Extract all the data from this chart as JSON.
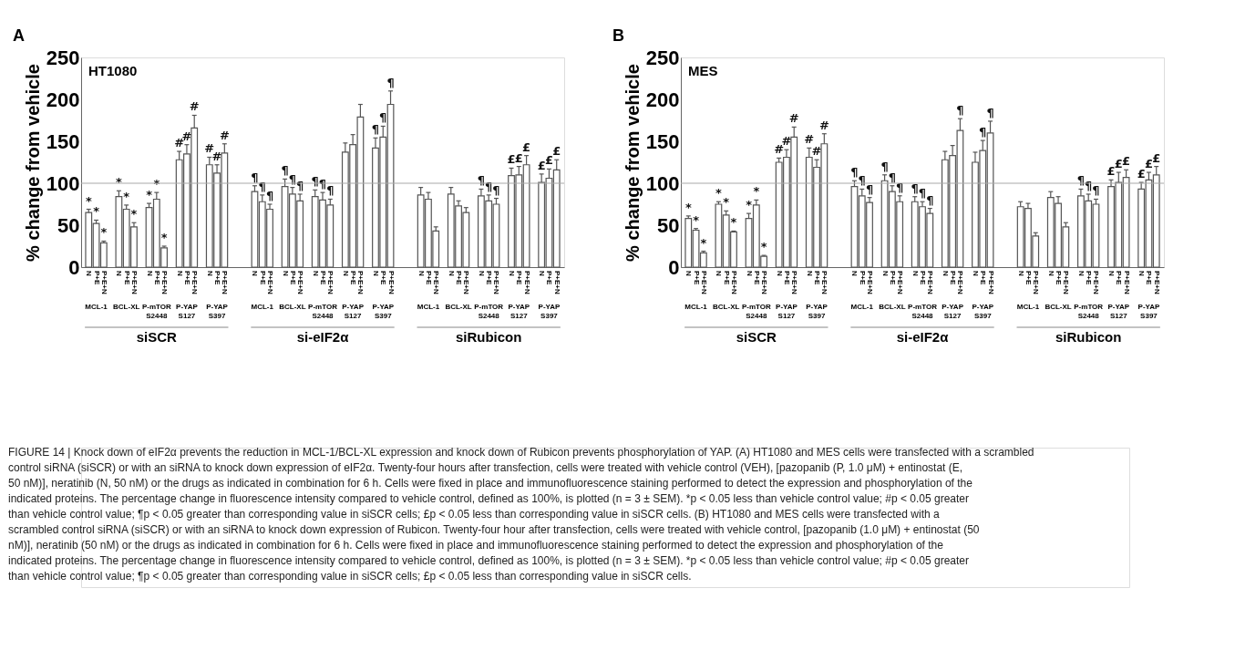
{
  "chart_data": [
    {
      "type": "bar",
      "ylabel": "% change from vehicle",
      "categories": [
        "N",
        "P+E",
        "P+E+N",
        null,
        "N",
        "P+E",
        "P+E+N",
        null,
        "N",
        "P+E",
        "P+E+N",
        null,
        "N",
        "P+E",
        "P+E+N",
        null,
        "N",
        "P+E",
        "P+E+N",
        null,
        null,
        null,
        "N",
        "P+E",
        "P+E+N",
        null,
        "N",
        "P+E",
        "P+E+N",
        null,
        "N",
        "P+E",
        "P+E+N",
        null,
        "N",
        "P+E",
        "P+E+N",
        null,
        "N",
        "P+E",
        "P+E+N",
        null,
        null,
        null,
        "N",
        "P+E",
        "P+E+N",
        null,
        "N",
        "P+E",
        "P+E+N",
        null,
        "N",
        "P+E",
        "P+E+N",
        null,
        "N",
        "P+E",
        "P+E+N",
        null,
        "N",
        "P+E",
        "P+E+N"
      ],
      "series": [
        {
          "color": "#ffffff",
          "values": [
            65,
            52,
            29,
            null,
            84,
            69,
            48,
            null,
            71,
            81,
            23,
            null,
            128,
            135,
            166,
            null,
            122,
            112,
            136,
            null,
            null,
            null,
            90,
            78,
            69,
            null,
            96,
            87,
            79,
            null,
            84,
            80,
            74,
            null,
            137,
            146,
            179,
            null,
            142,
            155,
            194,
            null,
            null,
            null,
            86,
            81,
            43,
            null,
            87,
            73,
            65,
            null,
            85,
            79,
            75,
            null,
            109,
            110,
            122,
            null,
            101,
            106,
            116
          ],
          "errors": [
            [
              65,
              69
            ],
            [
              52,
              56
            ],
            [
              29,
              31
            ],
            null,
            [
              84,
              91
            ],
            [
              69,
              74
            ],
            [
              48,
              53
            ],
            null,
            [
              71,
              76
            ],
            [
              81,
              89
            ],
            [
              23,
              25
            ],
            null,
            [
              128,
              138
            ],
            [
              135,
              146
            ],
            [
              166,
              181
            ],
            null,
            [
              122,
              131
            ],
            [
              112,
              122
            ],
            [
              136,
              147
            ],
            null,
            null,
            null,
            [
              90,
              97
            ],
            [
              78,
              86
            ],
            [
              69,
              75
            ],
            null,
            [
              96,
              105
            ],
            [
              87,
              95
            ],
            [
              79,
              87
            ],
            null,
            [
              84,
              92
            ],
            [
              80,
              89
            ],
            [
              74,
              81
            ],
            null,
            [
              137,
              148
            ],
            [
              146,
              158
            ],
            [
              179,
              194
            ],
            null,
            [
              142,
              154
            ],
            [
              155,
              168
            ],
            [
              194,
              210
            ],
            null,
            null,
            null,
            [
              86,
              95
            ],
            [
              81,
              89
            ],
            [
              43,
              48
            ],
            null,
            [
              87,
              95
            ],
            [
              73,
              79
            ],
            [
              65,
              71
            ],
            null,
            [
              85,
              93
            ],
            [
              79,
              86
            ],
            [
              75,
              82
            ],
            null,
            [
              109,
              118
            ],
            [
              110,
              120
            ],
            [
              122,
              133
            ],
            null,
            [
              101,
              111
            ],
            [
              106,
              117
            ],
            [
              116,
              128
            ]
          ],
          "value_labels": [
            "*",
            "*",
            "*",
            null,
            "*",
            "*",
            "*",
            null,
            "*",
            "*",
            "*",
            null,
            "#",
            "#",
            "#",
            null,
            "#",
            "#",
            "#",
            null,
            null,
            null,
            "¶",
            "¶",
            "¶",
            null,
            "¶",
            "¶",
            "¶",
            null,
            "¶",
            "¶",
            "¶",
            null,
            null,
            null,
            null,
            null,
            "¶",
            "¶",
            "¶",
            null,
            null,
            null,
            null,
            null,
            null,
            null,
            null,
            null,
            null,
            null,
            "¶",
            "¶",
            "¶",
            null,
            "£",
            "£",
            "£",
            null,
            "£",
            "£",
            "£"
          ]
        }
      ],
      "ylim": [
        0,
        250
      ],
      "yticks": [
        0,
        50,
        100,
        150,
        200,
        250
      ],
      "grid": false,
      "ref_lines": [
        {
          "axis": "y",
          "value": 100,
          "color": "#aaaaaa"
        }
      ],
      "annotations": [
        "A",
        "HT1080",
        "MCL-1",
        "BCL-XL",
        "P-mTOR S2448",
        "P-YAP S127",
        "P-YAP S397",
        "MCL-1",
        "BCL-XL",
        "P-mTOR S2448",
        "P-YAP S127",
        "P-YAP S397",
        "MCL-1",
        "BCL-XL",
        "P-mTOR S2448",
        "P-YAP S127",
        "P-YAP S397",
        "siSCR",
        "si-eIF2α",
        "siRubicon"
      ]
    },
    {
      "type": "bar",
      "ylabel": "% change from vehicle",
      "categories": [
        "N",
        "P+E",
        "P+E+N",
        null,
        "N",
        "P+E",
        "P+E+N",
        null,
        "N",
        "P+E",
        "P+E+N",
        null,
        "N",
        "P+E",
        "P+E+N",
        null,
        "N",
        "P+E",
        "P+E+N",
        null,
        null,
        null,
        "N",
        "P+E",
        "P+E+N",
        null,
        "N",
        "P+E",
        "P+E+N",
        null,
        "N",
        "P+E",
        "P+E+N",
        null,
        "N",
        "P+E",
        "P+E+N",
        null,
        "N",
        "P+E",
        "P+E+N",
        null,
        null,
        null,
        "N",
        "P+E",
        "P+E+N",
        null,
        "N",
        "P+E",
        "P+E+N",
        null,
        "N",
        "P+E",
        "P+E+N",
        null,
        "N",
        "P+E",
        "P+E+N",
        null,
        "N",
        "P+E",
        "P+E+N"
      ],
      "series": [
        {
          "color": "#ffffff",
          "values": [
            58,
            44,
            17,
            null,
            75,
            62,
            42,
            null,
            58,
            74,
            13,
            null,
            125,
            131,
            155,
            null,
            131,
            119,
            147,
            null,
            null,
            null,
            96,
            85,
            77,
            null,
            103,
            90,
            78,
            null,
            78,
            72,
            64,
            null,
            128,
            133,
            163,
            null,
            125,
            139,
            160,
            null,
            null,
            null,
            72,
            70,
            37,
            null,
            83,
            76,
            48,
            null,
            85,
            79,
            75,
            null,
            96,
            101,
            107,
            null,
            93,
            104,
            110
          ],
          "errors": [
            [
              58,
              61
            ],
            [
              44,
              46
            ],
            [
              17,
              19
            ],
            null,
            [
              75,
              78
            ],
            [
              62,
              67
            ],
            [
              42,
              43
            ],
            null,
            [
              58,
              64
            ],
            [
              74,
              80
            ],
            [
              13,
              14
            ],
            null,
            [
              125,
              130
            ],
            [
              131,
              140
            ],
            [
              155,
              167
            ],
            null,
            [
              131,
              142
            ],
            [
              119,
              128
            ],
            [
              147,
              159
            ],
            null,
            null,
            null,
            [
              96,
              103
            ],
            [
              85,
              93
            ],
            [
              77,
              83
            ],
            null,
            [
              103,
              110
            ],
            [
              90,
              97
            ],
            [
              78,
              85
            ],
            null,
            [
              78,
              84
            ],
            [
              72,
              78
            ],
            [
              64,
              70
            ],
            null,
            [
              128,
              138
            ],
            [
              133,
              145
            ],
            [
              163,
              177
            ],
            null,
            [
              125,
              137
            ],
            [
              139,
              151
            ],
            [
              160,
              174
            ],
            null,
            null,
            null,
            [
              72,
              78
            ],
            [
              70,
              76
            ],
            [
              37,
              41
            ],
            null,
            [
              83,
              90
            ],
            [
              76,
              84
            ],
            [
              48,
              53
            ],
            null,
            [
              85,
              93
            ],
            [
              79,
              87
            ],
            [
              75,
              81
            ],
            null,
            [
              96,
              104
            ],
            [
              101,
              113
            ],
            [
              107,
              116
            ],
            null,
            [
              93,
              101
            ],
            [
              104,
              113
            ],
            [
              110,
              120
            ]
          ],
          "value_labels": [
            "*",
            "*",
            "*",
            null,
            "*",
            "*",
            "*",
            null,
            "*",
            "*",
            "*",
            null,
            "#",
            "#",
            "#",
            null,
            "#",
            "#",
            "#",
            null,
            null,
            null,
            "¶",
            "¶",
            "¶",
            null,
            "¶",
            "¶",
            "¶",
            null,
            "¶",
            "¶",
            "¶",
            null,
            null,
            null,
            "¶",
            null,
            null,
            "¶",
            "¶",
            null,
            null,
            null,
            null,
            null,
            null,
            null,
            null,
            null,
            null,
            null,
            "¶",
            "¶",
            "¶",
            null,
            "£",
            "£",
            "£",
            null,
            "£",
            "£",
            "£"
          ]
        }
      ],
      "ylim": [
        0,
        250
      ],
      "yticks": [
        0,
        50,
        100,
        150,
        200,
        250
      ],
      "grid": false,
      "ref_lines": [
        {
          "axis": "y",
          "value": 100,
          "color": "#aaaaaa"
        }
      ],
      "annotations": [
        "B",
        "MES",
        "MCL-1",
        "BCL-XL",
        "P-mTOR S2448",
        "P-YAP S127",
        "P-YAP S397",
        "MCL-1",
        "BCL-XL",
        "P-mTOR S2448",
        "P-YAP S127",
        "P-YAP S397",
        "MCL-1",
        "BCL-XL",
        "P-mTOR S2448",
        "P-YAP S127",
        "P-YAP S397",
        "siSCR",
        "si-eIF2α",
        "siRubicon",
        "FIGURE 14 | Knock down of eIF2α prevents the reduction in MCL-1/BCL-XL expression and knock down of Rubicon prevents phosphorylation of YAP. (A) HT1080 and MES cells were transfected with a scrambled control siRNA (siSCR) or with an siRNA to knock down expression of eIF2α. Twenty-four hours after transfection, cells were treated with vehicle control (VEH), [pazopanib (P, 1.0 μM) + entinostat (E, 50 nM)], neratinib (N, 50 nM) or the drugs as indicated in combination for 6 h. Cells were fixed in place and immunofluorescence staining performed to detect the expression and phosphorylation of the indicated proteins. The percentage change in fluorescence intensity compared to vehicle control, defined as 100%, is plotted (n = 3 ± SEM). *p < 0.05 less than vehicle control value; #p < 0.05 greater than vehicle control value; ¶p < 0.05 greater than corresponding value in siSCR cells; £p < 0.05 less than corresponding value in siSCR cells. (B) HT1080 and MES cells were transfected with a scrambled control siRNA (siSCR) or with an siRNA to knock down expression of Rubicon. Twenty-four hour after transfection, cells were treated with vehicle control, [pazopanib (1.0 μM) + entinostat (50 nM)], neratinib (50 nM) or the drugs as indicated in combination for 6 h. Cells were fixed in place and immunofluorescence staining performed to detect the expression and phosphorylation of the indicated proteins. The percentage change in fluorescence intensity compared to vehicle control, defined as 100%, is plotted (n = 3 ± SEM). *p < 0.05 less than vehicle control value; #p < 0.05 greater than vehicle control value; ¶p < 0.05 greater than corresponding value in siSCR cells; £p < 0.05 less than corresponding value in siSCR cells."
      ]
    }
  ]
}
